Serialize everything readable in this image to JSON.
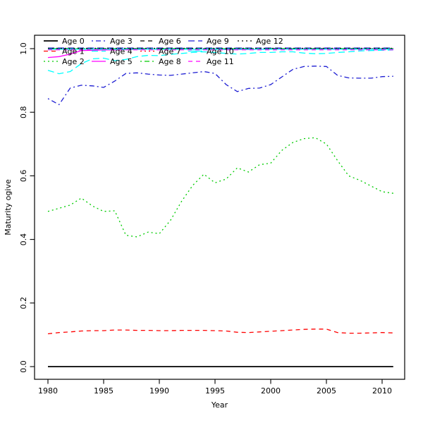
{
  "figure": {
    "background": "#ffffff"
  },
  "chart_data": {
    "type": "line",
    "title": "",
    "xlabel": "Year",
    "ylabel": "Maturity ogive",
    "xlim": [
      1978.7,
      2012.3
    ],
    "ylim": [
      -0.04,
      1.04
    ],
    "x_ticks": [
      1980,
      1985,
      1990,
      1995,
      2000,
      2005,
      2010
    ],
    "y_ticks": [
      0.0,
      0.2,
      0.4,
      0.6,
      0.8,
      1.0
    ],
    "y_tick_labels": [
      "0.0",
      "0.2",
      "0.4",
      "0.6",
      "0.8",
      "1.0"
    ],
    "grid": false,
    "legend_position": "top-left-inside",
    "legend_columns": 5,
    "legend_rows": 3,
    "x": [
      1980,
      1981,
      1982,
      1983,
      1984,
      1985,
      1986,
      1987,
      1988,
      1989,
      1990,
      1991,
      1992,
      1993,
      1994,
      1995,
      1996,
      1997,
      1998,
      1999,
      2000,
      2001,
      2002,
      2003,
      2004,
      2005,
      2006,
      2007,
      2008,
      2009,
      2010,
      2011
    ],
    "series": [
      {
        "name": "Age 0",
        "color": "#000000",
        "linetype": "solid",
        "values": [
          0,
          0,
          0,
          0,
          0,
          0,
          0,
          0,
          0,
          0,
          0,
          0,
          0,
          0,
          0,
          0,
          0,
          0,
          0,
          0,
          0,
          0,
          0,
          0,
          0,
          0,
          0,
          0,
          0,
          0,
          0,
          0
        ]
      },
      {
        "name": "Age 1",
        "color": "#ff0000",
        "linetype": "dashed",
        "values": [
          0.103,
          0.107,
          0.109,
          0.112,
          0.113,
          0.113,
          0.115,
          0.115,
          0.114,
          0.114,
          0.113,
          0.113,
          0.114,
          0.114,
          0.114,
          0.113,
          0.112,
          0.108,
          0.107,
          0.109,
          0.111,
          0.113,
          0.115,
          0.117,
          0.118,
          0.118,
          0.107,
          0.105,
          0.105,
          0.106,
          0.107,
          0.106
        ]
      },
      {
        "name": "Age 2",
        "color": "#00cc00",
        "linetype": "dotted",
        "values": [
          0.488,
          0.498,
          0.508,
          0.53,
          0.505,
          0.488,
          0.49,
          0.413,
          0.408,
          0.423,
          0.418,
          0.46,
          0.52,
          0.57,
          0.605,
          0.578,
          0.59,
          0.625,
          0.612,
          0.635,
          0.64,
          0.68,
          0.705,
          0.717,
          0.72,
          0.7,
          0.648,
          0.6,
          0.586,
          0.568,
          0.55,
          0.545
        ]
      },
      {
        "name": "Age 3",
        "color": "#1c1cd2",
        "linetype": "dotdash",
        "values": [
          0.843,
          0.824,
          0.876,
          0.885,
          0.883,
          0.878,
          0.898,
          0.922,
          0.924,
          0.92,
          0.917,
          0.916,
          0.92,
          0.924,
          0.928,
          0.922,
          0.887,
          0.865,
          0.875,
          0.876,
          0.887,
          0.911,
          0.935,
          0.944,
          0.945,
          0.944,
          0.916,
          0.908,
          0.907,
          0.907,
          0.912,
          0.913
        ]
      },
      {
        "name": "Age 4",
        "color": "#00ffff",
        "linetype": "longdash",
        "values": [
          0.932,
          0.921,
          0.928,
          0.953,
          0.968,
          0.97,
          0.962,
          0.966,
          0.975,
          0.979,
          0.978,
          0.982,
          0.985,
          0.988,
          0.99,
          0.988,
          0.985,
          0.983,
          0.985,
          0.988,
          0.988,
          0.99,
          0.99,
          0.986,
          0.984,
          0.985,
          0.988,
          0.99,
          0.993,
          0.994,
          0.995,
          0.996
        ]
      },
      {
        "name": "Age 5",
        "color": "#ff00ff",
        "linetype": "solid",
        "values": [
          0.972,
          0.975,
          0.983,
          0.994,
          0.995,
          0.996,
          0.996,
          0.997,
          0.997,
          0.998,
          0.998,
          0.998,
          0.998,
          0.998,
          0.998,
          0.998,
          0.997,
          0.997,
          0.997,
          0.998,
          0.999,
          1,
          1,
          1,
          1,
          1,
          1,
          1,
          1,
          1,
          1,
          1
        ]
      },
      {
        "name": "Age 6",
        "color": "#000000",
        "linetype": "dashed",
        "values": [
          1,
          1,
          1,
          1,
          1,
          1,
          1,
          1,
          1,
          1,
          1,
          1,
          1,
          1,
          1,
          1,
          1,
          1,
          1,
          1,
          1,
          1,
          1,
          1,
          1,
          1,
          1,
          1,
          1,
          1,
          1,
          1
        ]
      },
      {
        "name": "Age 7",
        "color": "#ff0000",
        "linetype": "dotted",
        "values": [
          1,
          1,
          1,
          1,
          1,
          1,
          1,
          1,
          1,
          1,
          1,
          1,
          1,
          1,
          1,
          1,
          1,
          1,
          1,
          1,
          1,
          1,
          1,
          1,
          1,
          1,
          1,
          1,
          1,
          1,
          1,
          1
        ]
      },
      {
        "name": "Age 8",
        "color": "#00cc00",
        "linetype": "dotdash",
        "values": [
          1,
          1,
          1,
          1,
          1,
          1,
          1,
          1,
          1,
          1,
          1,
          1,
          1,
          1,
          1,
          1,
          1,
          1,
          1,
          1,
          1,
          1,
          1,
          1,
          1,
          1,
          1,
          1,
          1,
          1,
          1,
          1
        ]
      },
      {
        "name": "Age 9",
        "color": "#1c1cd2",
        "linetype": "longdash",
        "values": [
          1.002,
          1.002,
          1.002,
          1.002,
          1.002,
          1.002,
          1.002,
          1.002,
          1.002,
          1.002,
          1.002,
          1.002,
          1.002,
          1.002,
          1.002,
          1.002,
          1.002,
          1.002,
          1.002,
          1.002,
          1.002,
          1.002,
          1.002,
          1.002,
          1.002,
          1.002,
          1.002,
          1.002,
          1.002,
          1.002,
          1.002,
          1.002
        ]
      },
      {
        "name": "Age 10",
        "color": "#00ffff",
        "linetype": "solid",
        "values": [
          0.998,
          0.998,
          0.998,
          0.998,
          0.998,
          0.998,
          0.998,
          0.998,
          0.998,
          0.998,
          0.998,
          0.998,
          0.998,
          0.998,
          0.998,
          0.998,
          0.998,
          0.998,
          0.998,
          0.998,
          0.998,
          0.998,
          0.998,
          0.998,
          0.998,
          0.998,
          0.998,
          0.998,
          0.998,
          0.998,
          0.998,
          0.998
        ]
      },
      {
        "name": "Age 11",
        "color": "#ff00ff",
        "linetype": "dashed",
        "values": [
          0.9965,
          0.9965,
          0.9965,
          0.9965,
          0.9965,
          0.9965,
          0.9965,
          0.9965,
          0.9965,
          0.9965,
          0.9965,
          0.9965,
          0.9965,
          0.9965,
          0.9965,
          0.9965,
          0.9965,
          0.9965,
          0.9965,
          0.9965,
          0.9965,
          0.9965,
          0.9965,
          0.9965,
          0.9965,
          0.9965,
          0.9965,
          0.9965,
          0.9965,
          0.9965,
          0.9965,
          0.9965
        ]
      },
      {
        "name": "Age 12",
        "color": "#000000",
        "linetype": "dotted",
        "values": [
          1.001,
          1.001,
          1.001,
          1.001,
          1.001,
          1.001,
          1.001,
          1.001,
          1.001,
          1.001,
          1.001,
          1.001,
          1.001,
          1.001,
          1.001,
          1.001,
          1.001,
          1.001,
          1.001,
          1.001,
          1.001,
          1.001,
          1.001,
          1.001,
          1.001,
          1.001,
          1.001,
          1.001,
          1.001,
          1.001,
          1.001,
          1.001
        ]
      }
    ]
  }
}
